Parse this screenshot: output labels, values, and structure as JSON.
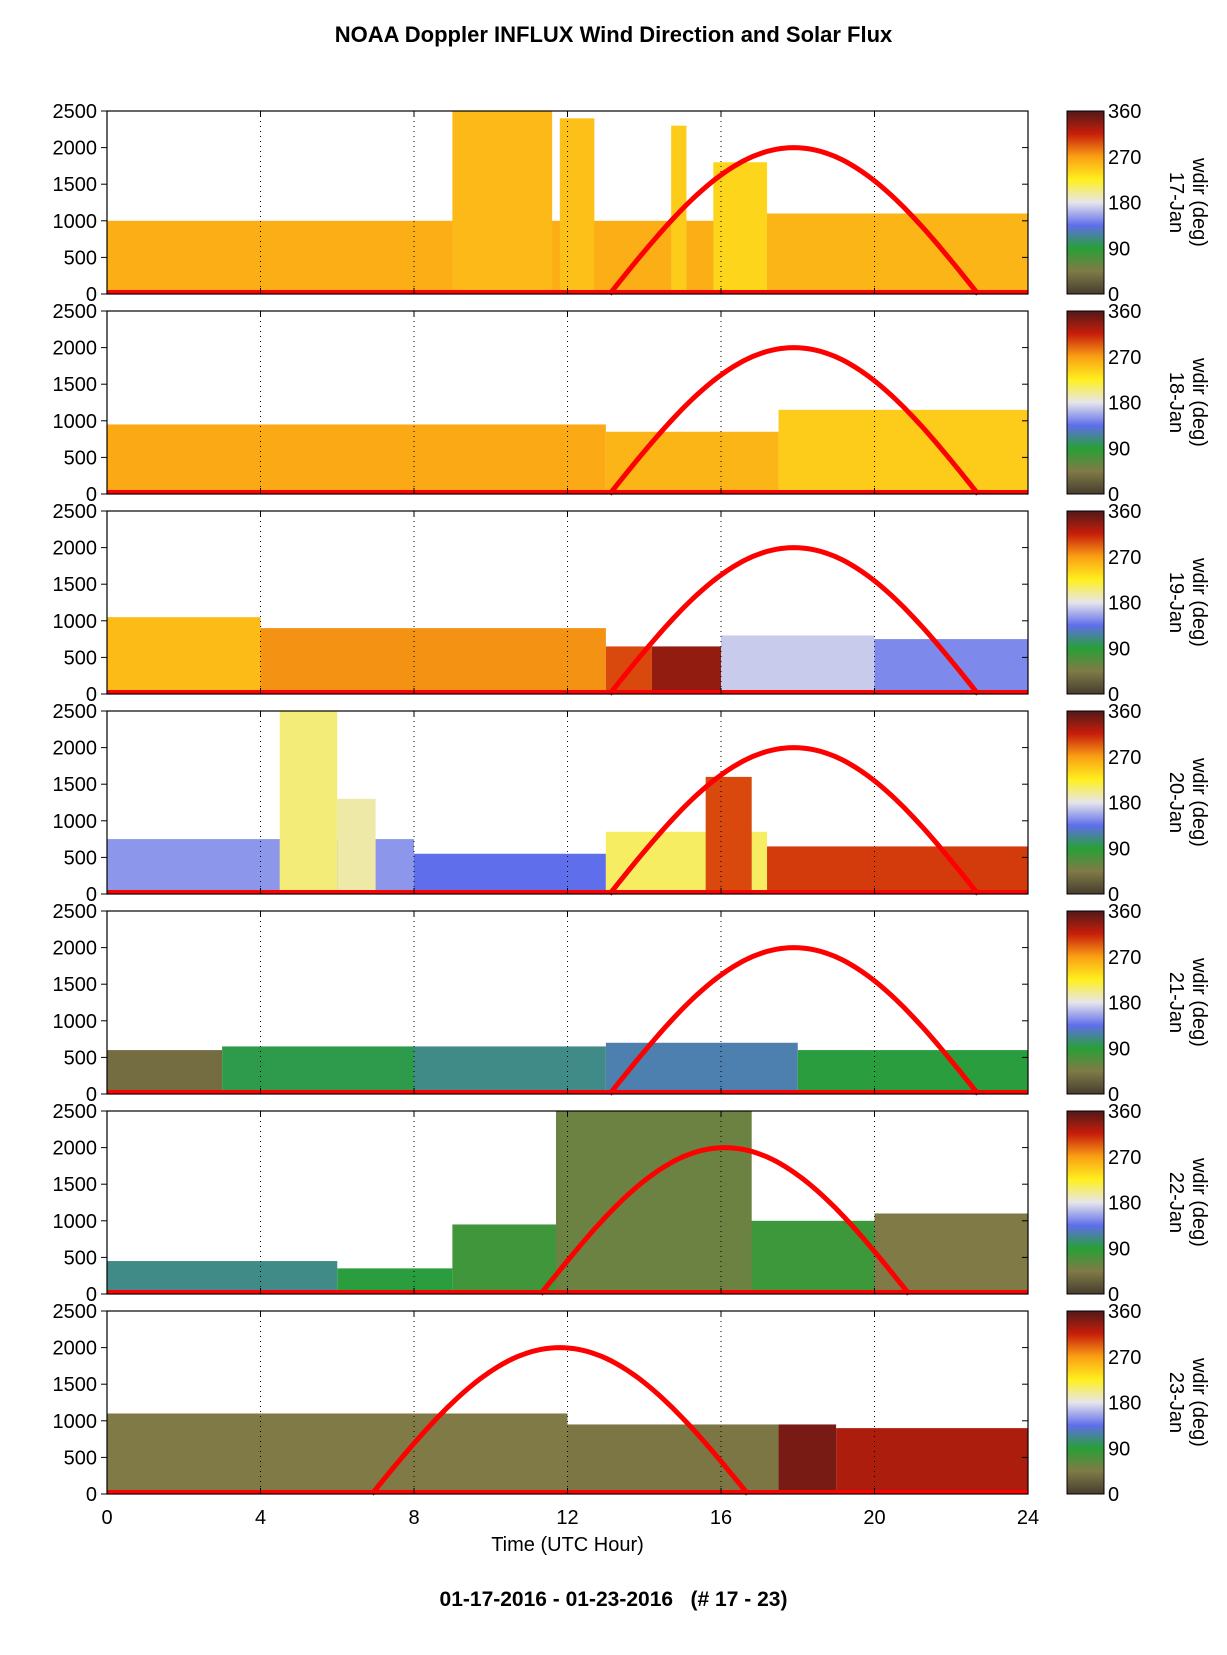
{
  "title": "NOAA Doppler INFLUX Wind Direction and Solar Flux",
  "footer": "01-17-2016 - 01-23-2016   (# 17 - 23)",
  "colors": {
    "curve": "#ff0000",
    "axis": "#000000",
    "grid": "#000000"
  },
  "chart_data": {
    "type": "heatmap",
    "xlabel": "Time (UTC Hour)",
    "x_ticks": [
      0,
      4,
      8,
      12,
      16,
      20,
      24
    ],
    "y_ticks": [
      0,
      500,
      1000,
      1500,
      2000,
      2500
    ],
    "xlim": [
      0,
      24
    ],
    "ylim": [
      0,
      2500
    ],
    "vertical_gridlines_dotted": [
      4,
      8,
      12,
      16,
      20
    ],
    "colorbar": {
      "label": "wdir (deg)",
      "ticks": [
        0,
        90,
        180,
        270,
        360
      ],
      "range": [
        0,
        360
      ]
    },
    "panels": [
      {
        "date": "17-Jan",
        "solar_curve": {
          "sunrise": 13.1,
          "peak_hour": 17.9,
          "sunset": 22.7,
          "peak_value": 2000
        },
        "wind_layers": [
          {
            "x": [
              0,
              24
            ],
            "top": 1000,
            "dir": 262
          },
          {
            "x": [
              9.0,
              11.6
            ],
            "top": 2500,
            "dir": 256
          },
          {
            "x": [
              11.8,
              12.7
            ],
            "top": 2400,
            "dir": 252
          },
          {
            "x": [
              14.7,
              15.1
            ],
            "top": 2300,
            "dir": 245
          },
          {
            "x": [
              15.8,
              17.2
            ],
            "top": 1800,
            "dir": 240
          },
          {
            "x": [
              17.2,
              24
            ],
            "top": 1100,
            "dir": 258
          }
        ]
      },
      {
        "date": "18-Jan",
        "solar_curve": {
          "sunrise": 13.1,
          "peak_hour": 17.9,
          "sunset": 22.7,
          "peak_value": 2000
        },
        "wind_layers": [
          {
            "x": [
              0,
              13.0
            ],
            "top": 950,
            "dir": 265
          },
          {
            "x": [
              13.0,
              17.5
            ],
            "top": 850,
            "dir": 258
          },
          {
            "x": [
              17.5,
              24
            ],
            "top": 1150,
            "dir": 245
          }
        ]
      },
      {
        "date": "19-Jan",
        "solar_curve": {
          "sunrise": 13.1,
          "peak_hour": 17.9,
          "sunset": 22.7,
          "peak_value": 2000
        },
        "wind_layers": [
          {
            "x": [
              0,
              4.0
            ],
            "top": 1050,
            "dir": 255
          },
          {
            "x": [
              4.0,
              13.0
            ],
            "top": 900,
            "dir": 275
          },
          {
            "x": [
              13.0,
              14.2
            ],
            "top": 650,
            "dir": 300
          },
          {
            "x": [
              14.2,
              16.0
            ],
            "top": 650,
            "dir": 335
          },
          {
            "x": [
              16.0,
              20.0
            ],
            "top": 800,
            "dir": 170
          },
          {
            "x": [
              20.0,
              24
            ],
            "top": 750,
            "dir": 145
          }
        ]
      },
      {
        "date": "20-Jan",
        "solar_curve": {
          "sunrise": 13.1,
          "peak_hour": 17.9,
          "sunset": 22.7,
          "peak_value": 2000
        },
        "wind_layers": [
          {
            "x": [
              0,
              8.0
            ],
            "top": 750,
            "dir": 150
          },
          {
            "x": [
              4.5,
              6.0
            ],
            "top": 2500,
            "dir": 205
          },
          {
            "x": [
              6.0,
              7.0
            ],
            "top": 1300,
            "dir": 195
          },
          {
            "x": [
              8.0,
              13.0
            ],
            "top": 550,
            "dir": 135
          },
          {
            "x": [
              13.0,
              17.2
            ],
            "top": 850,
            "dir": 210
          },
          {
            "x": [
              15.6,
              16.8
            ],
            "top": 1600,
            "dir": 300
          },
          {
            "x": [
              17.2,
              24
            ],
            "top": 650,
            "dir": 305
          }
        ]
      },
      {
        "date": "21-Jan",
        "solar_curve": {
          "sunrise": 13.1,
          "peak_hour": 17.9,
          "sunset": 22.7,
          "peak_value": 2000
        },
        "wind_layers": [
          {
            "x": [
              0,
              3.0
            ],
            "top": 600,
            "dir": 35
          },
          {
            "x": [
              3.0,
              8.0
            ],
            "top": 650,
            "dir": 95
          },
          {
            "x": [
              8.0,
              13.0
            ],
            "top": 650,
            "dir": 110
          },
          {
            "x": [
              13.0,
              18.0
            ],
            "top": 700,
            "dir": 120
          },
          {
            "x": [
              18.0,
              24
            ],
            "top": 600,
            "dir": 92
          }
        ]
      },
      {
        "date": "22-Jan",
        "solar_curve": {
          "sunrise": 11.3,
          "peak_hour": 16.1,
          "sunset": 20.9,
          "peak_value": 2000
        },
        "wind_layers": [
          {
            "x": [
              0,
              6.0
            ],
            "top": 450,
            "dir": 110
          },
          {
            "x": [
              6.0,
              9.0
            ],
            "top": 350,
            "dir": 92
          },
          {
            "x": [
              9.0,
              13.0
            ],
            "top": 950,
            "dir": 78
          },
          {
            "x": [
              13.0,
              20.0
            ],
            "top": 1000,
            "dir": 80
          },
          {
            "x": [
              20.0,
              24
            ],
            "top": 1100,
            "dir": 45
          },
          {
            "x": [
              11.7,
              16.8
            ],
            "top": 2500,
            "dir": 55
          }
        ]
      },
      {
        "date": "23-Jan",
        "solar_curve": {
          "sunrise": 6.9,
          "peak_hour": 11.8,
          "sunset": 16.7,
          "peak_value": 2000
        },
        "wind_layers": [
          {
            "x": [
              0,
              12.0
            ],
            "top": 1100,
            "dir": 45
          },
          {
            "x": [
              12.0,
              17.5
            ],
            "top": 950,
            "dir": 42
          },
          {
            "x": [
              17.5,
              19.0
            ],
            "top": 950,
            "dir": 345
          },
          {
            "x": [
              19.0,
              24
            ],
            "top": 900,
            "dir": 325
          }
        ]
      }
    ]
  }
}
